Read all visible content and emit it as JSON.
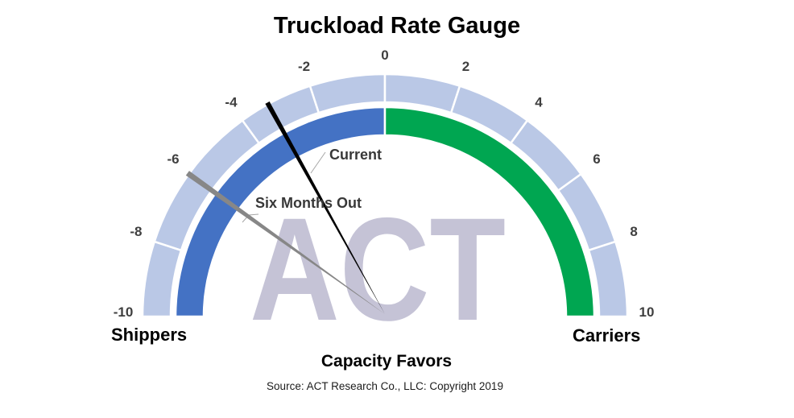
{
  "title": "Truckload Rate Gauge",
  "chart_data": {
    "type": "gauge",
    "min": -10,
    "max": 10,
    "tick_step": 2,
    "ticks": [
      -10,
      -8,
      -6,
      -4,
      -2,
      0,
      2,
      4,
      6,
      8,
      10
    ],
    "tick_labels": [
      "-10",
      "-8",
      "-6",
      "-4",
      "-2",
      "0",
      "2",
      "4",
      "6",
      "8",
      "10"
    ],
    "tick_label_color": "#3f3f3f",
    "outer_ring_color": "#bac8e6",
    "divider_color": "#ffffff",
    "zones": [
      {
        "from": -10,
        "to": 0,
        "color": "#4472c4",
        "side_label": "Shippers"
      },
      {
        "from": 0,
        "to": 10,
        "color": "#00a651",
        "side_label": "Carriers"
      }
    ],
    "needles": [
      {
        "name": "Current",
        "value": -3.2,
        "color": "#000000"
      },
      {
        "name": "Six Months Out",
        "value": -6.0,
        "color": "#878787"
      }
    ],
    "watermark": "ACT",
    "watermark_color": "#c5c3d6",
    "left_label": "Shippers",
    "right_label": "Carriers",
    "bottom_label": "Capacity Favors",
    "source": "Source: ACT Research Co., LLC: Copyright 2019"
  }
}
